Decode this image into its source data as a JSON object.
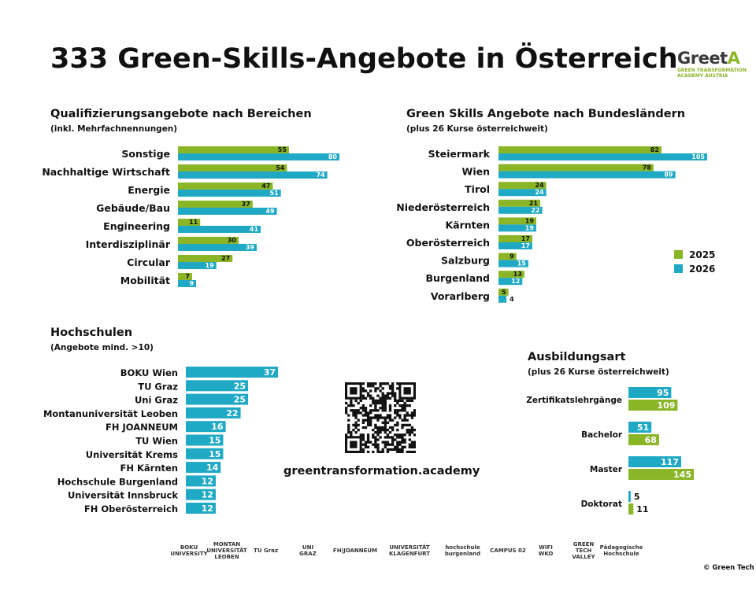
{
  "page": {
    "title": "333 Green-Skills-Angebote in Österreich",
    "url": "greentransformation.academy",
    "copyright": "© Green Tech V"
  },
  "logo": {
    "name_main": "Greet",
    "name_accent": "A",
    "sub1": "GREEN TRANSFORMATION",
    "sub2": "ACADEMY AUSTRIA"
  },
  "colors": {
    "green": "#8ab526",
    "teal": "#1fa9c4"
  },
  "partners": [
    "BOKU UNIVERSITY",
    "MONTAN UNIVERSITÄT LEOBEN",
    "TU Graz",
    "UNI GRAZ",
    "FH|JOANNEUM",
    "UNIVERSITÄT KLAGENFURT",
    "hochschule burgenland",
    "CAMPUS 02",
    "WIFI WKO",
    "GREEN TECH VALLEY",
    "Pädagogische Hochschule"
  ],
  "chart_data": [
    {
      "id": "bereiche",
      "type": "bar",
      "orientation": "horizontal",
      "title": "Qualifizierungsangebote nach Bereichen",
      "subtitle": "(inkl. Mehrfachnennungen)",
      "categories": [
        "Sonstige",
        "Nachhaltige Wirtschaft",
        "Energie",
        "Gebäude/Bau",
        "Engineering",
        "Interdisziplinär",
        "Circular",
        "Mobilität"
      ],
      "series": [
        {
          "name": "2025",
          "color": "#8ab526",
          "values": [
            55,
            54,
            47,
            37,
            11,
            30,
            27,
            7
          ]
        },
        {
          "name": "2026",
          "color": "#1fa9c4",
          "values": [
            80,
            74,
            51,
            49,
            41,
            39,
            19,
            9
          ]
        }
      ],
      "xlim": [
        0,
        80
      ]
    },
    {
      "id": "bundeslaender",
      "type": "bar",
      "orientation": "horizontal",
      "title": "Green Skills Angebote nach Bundesländern",
      "subtitle": "(plus 26 Kurse österreichweit)",
      "categories": [
        "Steiermark",
        "Wien",
        "Tirol",
        "Niederösterreich",
        "Kärnten",
        "Oberösterreich",
        "Salzburg",
        "Burgenland",
        "Vorarlberg"
      ],
      "series": [
        {
          "name": "2025",
          "color": "#8ab526",
          "values": [
            82,
            78,
            24,
            21,
            19,
            17,
            9,
            13,
            5
          ]
        },
        {
          "name": "2026",
          "color": "#1fa9c4",
          "values": [
            105,
            89,
            24,
            22,
            19,
            17,
            15,
            12,
            4
          ]
        }
      ],
      "legend": "right",
      "xlim": [
        0,
        105
      ]
    },
    {
      "id": "hochschulen",
      "type": "bar",
      "orientation": "horizontal",
      "title": "Hochschulen",
      "subtitle": "(Angebote mind. >10)",
      "categories": [
        "BOKU Wien",
        "TU Graz",
        "Uni Graz",
        "Montanuniversität Leoben",
        "FH JOANNEUM",
        "TU Wien",
        "Universität Krems",
        "FH Kärnten",
        "Hochschule Burgenland",
        "Universität Innsbruck",
        "FH Oberösterreich"
      ],
      "series": [
        {
          "color": "#1fa9c4",
          "values": [
            37,
            25,
            25,
            22,
            16,
            15,
            15,
            14,
            12,
            12,
            12
          ]
        }
      ],
      "xlim": [
        0,
        37
      ]
    },
    {
      "id": "ausbildungsart",
      "type": "bar",
      "orientation": "horizontal",
      "title": "Ausbildungsart",
      "subtitle": "(plus 26 Kurse österreichweit)",
      "categories": [
        "Zertifikatslehrgänge",
        "Bachelor",
        "Master",
        "Doktorat"
      ],
      "series": [
        {
          "name": "2026",
          "color": "#1fa9c4",
          "values": [
            95,
            51,
            117,
            5
          ]
        },
        {
          "name": "2025",
          "color": "#8ab526",
          "values": [
            109,
            68,
            145,
            11
          ]
        }
      ],
      "xlim": [
        0,
        145
      ]
    }
  ]
}
